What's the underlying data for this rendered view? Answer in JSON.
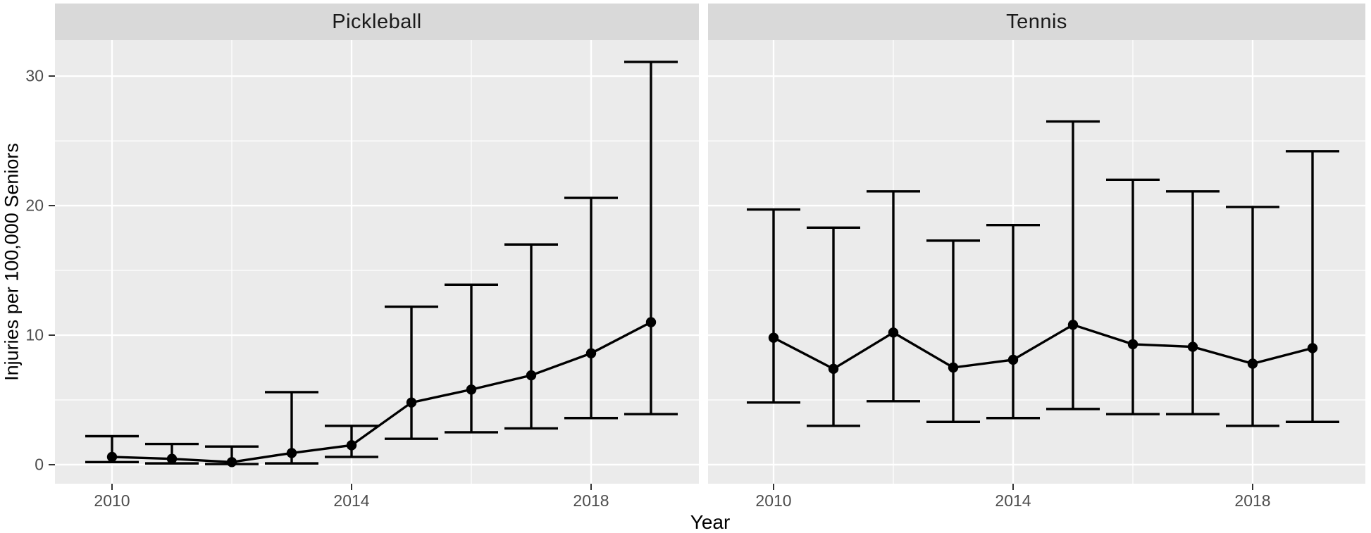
{
  "figure": {
    "y_axis_title": "Injuries per 100,000 Seniors",
    "x_axis_title": "Year",
    "facet_labels": [
      "Pickleball",
      "Tennis"
    ]
  },
  "colors": {
    "strip_bg": "#d9d9d9",
    "strip_text": "#1a1a1a",
    "panel_bg": "#ebebeb",
    "gridline": "#ffffff",
    "data_stroke": "#000000",
    "axis_tick_text": "#4d4d4d",
    "axis_tick_mark": "#333333",
    "axis_title_text": "#000000"
  },
  "chart_data": {
    "type": "line",
    "title": "",
    "xlabel": "Year",
    "ylabel": "Injuries per 100,000 Seniors",
    "x_ticks": [
      2010,
      2014,
      2018
    ],
    "x_minor_ticks": [
      2012,
      2016
    ],
    "y_ticks": [
      0,
      10,
      20,
      30
    ],
    "y_minor_ticks": [
      5,
      15,
      25
    ],
    "ylim": [
      -1.47,
      32.78
    ],
    "xlim": [
      2009.05,
      2019.85
    ],
    "grid": true,
    "legend_position": "none",
    "error_bars": true,
    "facets": [
      {
        "label": "Pickleball",
        "x": [
          2010,
          2011,
          2012,
          2013,
          2014,
          2015,
          2016,
          2017,
          2018,
          2019
        ],
        "series": [
          {
            "name": "Injuries per 100,000 Seniors",
            "values": [
              0.6,
              0.45,
              0.2,
              0.9,
              1.5,
              4.8,
              5.8,
              6.9,
              8.6,
              11.0
            ]
          }
        ],
        "ci_low": [
          0.2,
          0.1,
          0.05,
          0.1,
          0.6,
          2.0,
          2.5,
          2.8,
          3.6,
          3.9
        ],
        "ci_high": [
          2.2,
          1.6,
          1.4,
          5.6,
          3.0,
          12.2,
          13.9,
          17.0,
          20.6,
          31.1
        ]
      },
      {
        "label": "Tennis",
        "x": [
          2010,
          2011,
          2012,
          2013,
          2014,
          2015,
          2016,
          2017,
          2018,
          2019
        ],
        "series": [
          {
            "name": "Injuries per 100,000 Seniors",
            "values": [
              9.8,
              7.4,
              10.2,
              7.5,
              8.1,
              10.8,
              9.3,
              9.1,
              7.8,
              9.0
            ]
          }
        ],
        "ci_low": [
          4.8,
          3.0,
          4.9,
          3.3,
          3.6,
          4.3,
          3.9,
          3.9,
          3.0,
          3.3
        ],
        "ci_high": [
          19.7,
          18.3,
          21.1,
          17.3,
          18.5,
          26.5,
          22.0,
          21.1,
          19.9,
          24.2
        ]
      }
    ]
  }
}
